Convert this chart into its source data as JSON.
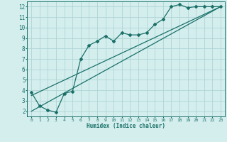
{
  "xlabel": "Humidex (Indice chaleur)",
  "bg_color": "#d4eeee",
  "grid_color": "#b0d4d4",
  "line_color": "#1a7068",
  "xlim": [
    -0.5,
    23.5
  ],
  "ylim": [
    1.5,
    12.5
  ],
  "xticks": [
    0,
    1,
    2,
    3,
    4,
    5,
    6,
    7,
    8,
    9,
    10,
    11,
    12,
    13,
    14,
    15,
    16,
    17,
    18,
    19,
    20,
    21,
    22,
    23
  ],
  "yticks": [
    2,
    3,
    4,
    5,
    6,
    7,
    8,
    9,
    10,
    11,
    12
  ],
  "series1_x": [
    0,
    1,
    2,
    3,
    4,
    5,
    6,
    7,
    8,
    9,
    10,
    11,
    12,
    13,
    14,
    15,
    16,
    17,
    18,
    19,
    20,
    21,
    22,
    23
  ],
  "series1_y": [
    3.8,
    2.5,
    2.1,
    1.9,
    3.7,
    3.9,
    7.0,
    8.3,
    8.7,
    9.2,
    8.7,
    9.5,
    9.3,
    9.3,
    9.5,
    10.3,
    10.8,
    12.0,
    12.2,
    11.9,
    12.0,
    12.0,
    12.0,
    12.0
  ],
  "series2_x": [
    0,
    23
  ],
  "series2_y": [
    2.0,
    12.0
  ],
  "series3_x": [
    0,
    23
  ],
  "series3_y": [
    3.5,
    12.0
  ],
  "marker": "D",
  "markersize": 2.0,
  "linewidth": 0.9
}
